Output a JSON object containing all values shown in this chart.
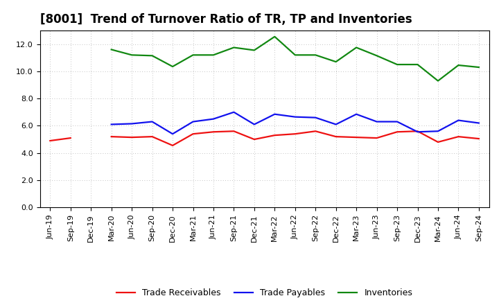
{
  "title": "[8001]  Trend of Turnover Ratio of TR, TP and Inventories",
  "x_labels": [
    "Jun-19",
    "Sep-19",
    "Dec-19",
    "Mar-20",
    "Jun-20",
    "Sep-20",
    "Dec-20",
    "Mar-21",
    "Jun-21",
    "Sep-21",
    "Dec-21",
    "Mar-22",
    "Jun-22",
    "Sep-22",
    "Dec-22",
    "Mar-23",
    "Jun-23",
    "Sep-23",
    "Dec-23",
    "Mar-24",
    "Jun-24",
    "Sep-24"
  ],
  "trade_receivables": [
    4.9,
    5.1,
    null,
    5.2,
    5.15,
    5.2,
    4.55,
    5.4,
    5.55,
    5.6,
    5.0,
    5.3,
    5.4,
    5.6,
    5.2,
    5.15,
    5.1,
    5.55,
    5.6,
    4.8,
    5.2,
    5.05
  ],
  "trade_payables": [
    null,
    null,
    null,
    6.1,
    6.15,
    6.3,
    5.4,
    6.3,
    6.5,
    7.0,
    6.1,
    6.85,
    6.65,
    6.6,
    6.1,
    6.85,
    6.3,
    6.3,
    5.55,
    5.6,
    6.4,
    6.2
  ],
  "inventories": [
    null,
    null,
    null,
    11.6,
    11.2,
    11.15,
    10.35,
    11.2,
    11.2,
    11.75,
    11.55,
    12.55,
    11.2,
    11.2,
    10.7,
    11.75,
    11.15,
    10.5,
    10.5,
    9.3,
    10.45,
    10.3
  ],
  "tr_color": "#EE1111",
  "tp_color": "#1111EE",
  "inv_color": "#118811",
  "legend_labels": [
    "Trade Receivables",
    "Trade Payables",
    "Inventories"
  ],
  "ylim": [
    0,
    13.0
  ],
  "yticks": [
    0.0,
    2.0,
    4.0,
    6.0,
    8.0,
    10.0,
    12.0
  ],
  "background_color": "#ffffff",
  "grid_color": "#999999",
  "linewidth": 1.6,
  "title_fontsize": 12,
  "tick_fontsize": 8,
  "legend_fontsize": 9
}
